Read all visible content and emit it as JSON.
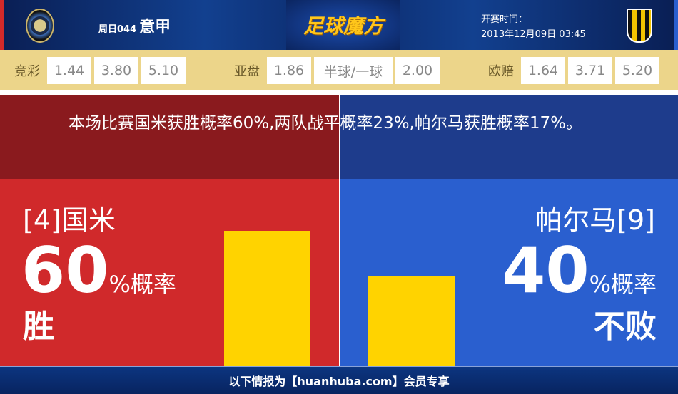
{
  "header": {
    "matchday": "周日044",
    "league": "意甲",
    "brand": "足球魔方",
    "time_label": "开赛时间：",
    "time_value": "2013年12月09日 03:45"
  },
  "odds": {
    "jingcai": {
      "label": "竞彩",
      "values": [
        "1.44",
        "3.80",
        "5.10"
      ]
    },
    "yapan": {
      "label": "亚盘",
      "values": [
        "1.86",
        "半球/一球",
        "2.00"
      ]
    },
    "oupei": {
      "label": "欧赔",
      "values": [
        "1.64",
        "3.71",
        "5.20"
      ]
    }
  },
  "summary": "本场比赛国米获胜概率60%,两队战平概率23%,帕尔马获胜概率17%。",
  "home": {
    "team": "[4]国米",
    "percent": "60",
    "unit": "%概率",
    "result": "胜",
    "probability": 60,
    "color": "#d0292b"
  },
  "away": {
    "team": "帕尔马[9]",
    "percent": "40",
    "unit": "%概率",
    "result": "不败",
    "probability": 40,
    "color": "#2a5fcf"
  },
  "bar_color": "#ffd300",
  "footer": "以下情报为【huanhuba.com】会员专享"
}
